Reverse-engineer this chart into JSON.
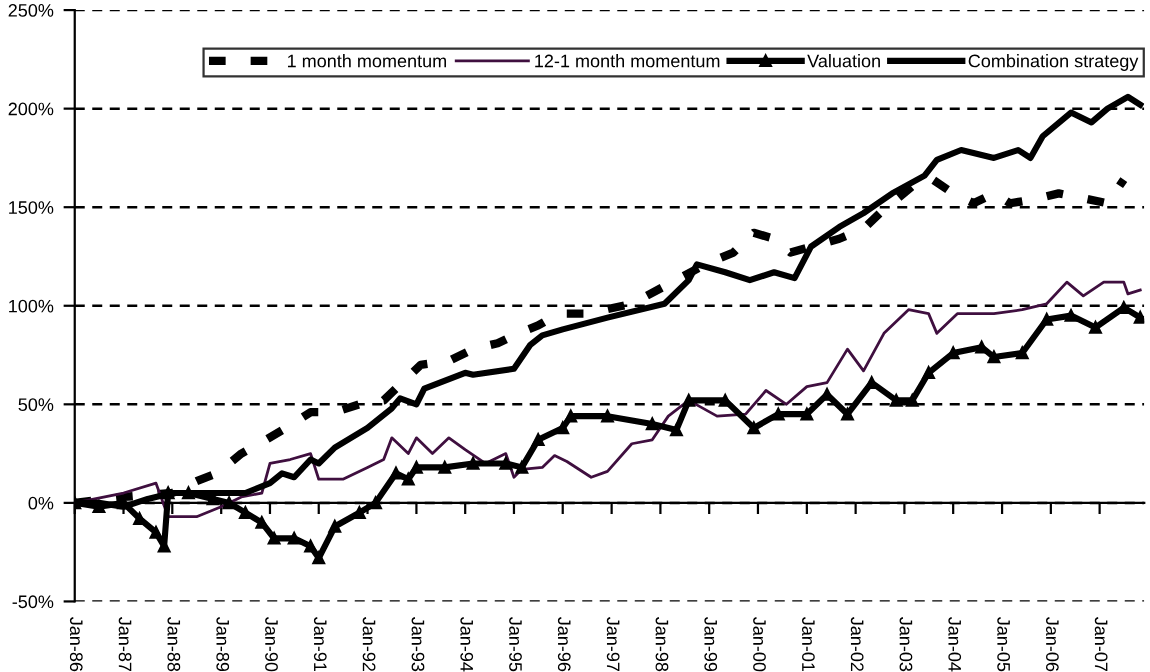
{
  "chart_data": {
    "type": "line",
    "ylim": [
      -50,
      250
    ],
    "yticks": [
      {
        "value": -50,
        "label": "-50%"
      },
      {
        "value": 0,
        "label": "0%"
      },
      {
        "value": 50,
        "label": "50%"
      },
      {
        "value": 100,
        "label": "100%"
      },
      {
        "value": 150,
        "label": "150%"
      },
      {
        "value": 200,
        "label": "200%"
      },
      {
        "value": 250,
        "label": "250%"
      }
    ],
    "xlim": [
      "1986-01",
      "2007-12"
    ],
    "xticks": [
      {
        "value": "1986-01",
        "label": "Jan-86"
      },
      {
        "value": "1987-01",
        "label": "Jan-87"
      },
      {
        "value": "1988-01",
        "label": "Jan-88"
      },
      {
        "value": "1989-01",
        "label": "Jan-89"
      },
      {
        "value": "1990-01",
        "label": "Jan-90"
      },
      {
        "value": "1991-01",
        "label": "Jan-91"
      },
      {
        "value": "1992-01",
        "label": "Jan-92"
      },
      {
        "value": "1993-01",
        "label": "Jan-93"
      },
      {
        "value": "1994-01",
        "label": "Jan-94"
      },
      {
        "value": "1995-01",
        "label": "Jan-95"
      },
      {
        "value": "1996-01",
        "label": "Jan-96"
      },
      {
        "value": "1997-01",
        "label": "Jan-97"
      },
      {
        "value": "1998-01",
        "label": "Jan-98"
      },
      {
        "value": "1999-01",
        "label": "Jan-99"
      },
      {
        "value": "2000-01",
        "label": "Jan-00"
      },
      {
        "value": "2001-01",
        "label": "Jan-01"
      },
      {
        "value": "2002-01",
        "label": "Jan-02"
      },
      {
        "value": "2003-01",
        "label": "Jan-03"
      },
      {
        "value": "2004-01",
        "label": "Jan-04"
      },
      {
        "value": "2005-01",
        "label": "Jan-05"
      },
      {
        "value": "2006-01",
        "label": "Jan-06"
      },
      {
        "value": "2007-01",
        "label": "Jan-07"
      }
    ],
    "grid": "y",
    "legend": "top",
    "series": [
      {
        "name": "1 month momentum",
        "color": "#000000",
        "line_style": "dashed",
        "x": [
          "1986-01",
          "1987-01",
          "1988-01",
          "1988-07",
          "1988-12",
          "1989-06",
          "1989-12",
          "1990-05",
          "1990-11",
          "1991-05",
          "1991-11",
          "1992-05",
          "1992-09",
          "1993-02",
          "1993-09",
          "1994-03",
          "1994-09",
          "1995-02",
          "1995-07",
          "1995-12",
          "1996-07",
          "1997-06",
          "1999-01",
          "1999-07",
          "1999-12",
          "2000-05",
          "2000-09",
          "2001-09",
          "2002-03",
          "2002-07",
          "2003-05",
          "2003-08",
          "2004-01",
          "2004-06",
          "2004-11",
          "2005-03",
          "2005-09",
          "2006-03",
          "2006-08",
          "2007-03",
          "2007-07"
        ],
        "values": [
          0,
          3,
          5,
          11,
          15,
          25,
          32,
          38,
          46,
          46,
          50,
          52,
          60,
          70,
          72,
          78,
          81,
          86,
          90,
          96,
          96,
          101,
          122,
          127,
          137,
          134,
          127,
          134,
          139,
          147,
          164,
          164,
          157,
          152,
          157,
          152,
          154,
          157,
          155,
          152,
          164
        ]
      },
      {
        "name": "12-1 month momentum",
        "color": "#3f0f3f",
        "line_style": "solid",
        "x": [
          "1986-01",
          "1987-01",
          "1987-09",
          "1987-12",
          "1988-07",
          "1989-01",
          "1989-06",
          "1989-11",
          "1990-01",
          "1990-06",
          "1990-11",
          "1991-01",
          "1991-07",
          "1992-01",
          "1992-05",
          "1992-07",
          "1992-11",
          "1993-01",
          "1993-05",
          "1993-09",
          "1994-01",
          "1994-06",
          "1994-11",
          "1995-01",
          "1995-03",
          "1995-08",
          "1995-11",
          "1996-02",
          "1996-08",
          "1996-12",
          "1997-06",
          "1997-11",
          "1998-03",
          "1998-08",
          "1999-03",
          "1999-10",
          "2000-03",
          "2000-08",
          "2001-01",
          "2001-06",
          "2001-11",
          "2002-03",
          "2002-08",
          "2003-02",
          "2003-07",
          "2003-09",
          "2004-02",
          "2004-11",
          "2005-06",
          "2005-12",
          "2006-05",
          "2006-09",
          "2007-02",
          "2007-07",
          "2007-08",
          "2007-11"
        ],
        "values": [
          0,
          5,
          10,
          -7,
          -7,
          -2,
          3,
          5,
          20,
          22,
          25,
          12,
          12,
          18,
          22,
          33,
          25,
          33,
          25,
          33,
          27,
          20,
          25,
          13,
          17,
          18,
          24,
          21,
          13,
          16,
          30,
          32,
          44,
          52,
          44,
          45,
          57,
          50,
          59,
          61,
          78,
          67,
          86,
          98,
          96,
          86,
          96,
          96,
          98,
          101,
          112,
          105,
          112,
          112,
          106,
          108
        ]
      },
      {
        "name": "Valuation",
        "color": "#000000",
        "line_style": "solid",
        "marker": "triangle",
        "x": [
          "1986-01",
          "1986-07",
          "1987-01",
          "1987-05",
          "1987-09",
          "1987-11",
          "1987-12",
          "1988-05",
          "1988-11",
          "1989-03",
          "1989-07",
          "1989-11",
          "1990-02",
          "1990-07",
          "1990-11",
          "1991-01",
          "1991-05",
          "1991-11",
          "1992-03",
          "1992-08",
          "1992-11",
          "1993-01",
          "1993-08",
          "1994-03",
          "1994-11",
          "1995-03",
          "1995-07",
          "1996-01",
          "1996-03",
          "1996-12",
          "1997-11",
          "1998-05",
          "1998-08",
          "1999-05",
          "1999-12",
          "2000-06",
          "2001-01",
          "2001-06",
          "2001-11",
          "2002-05",
          "2002-11",
          "2003-03",
          "2003-07",
          "2004-01",
          "2004-08",
          "2004-11",
          "2005-06",
          "2005-12",
          "2006-06",
          "2006-12",
          "2007-07",
          "2007-11"
        ],
        "values": [
          0,
          -2,
          0,
          -8,
          -15,
          -22,
          5,
          5,
          2,
          0,
          -5,
          -10,
          -18,
          -18,
          -22,
          -28,
          -12,
          -5,
          0,
          15,
          12,
          18,
          18,
          20,
          20,
          18,
          32,
          38,
          44,
          44,
          40,
          37,
          52,
          52,
          38,
          45,
          45,
          55,
          45,
          61,
          52,
          52,
          66,
          76,
          79,
          74,
          76,
          93,
          95,
          89,
          99,
          94
        ]
      },
      {
        "name": "Combination strategy",
        "color": "#000000",
        "line_style": "solid",
        "x": [
          "1986-01",
          "1986-07",
          "1987-01",
          "1987-07",
          "1988-01",
          "1989-01",
          "1989-07",
          "1990-01",
          "1990-04",
          "1990-07",
          "1990-11",
          "1991-01",
          "1991-05",
          "1992-01",
          "1992-07",
          "1992-09",
          "1993-01",
          "1993-03",
          "1994-01",
          "1994-03",
          "1995-01",
          "1995-05",
          "1995-08",
          "1996-01",
          "1996-12",
          "1998-02",
          "1998-08",
          "1998-10",
          "1999-05",
          "1999-11",
          "2000-05",
          "2000-10",
          "2001-02",
          "2001-09",
          "2002-03",
          "2002-10",
          "2003-06",
          "2003-09",
          "2004-03",
          "2004-11",
          "2005-05",
          "2005-08",
          "2005-11",
          "2006-06",
          "2006-11",
          "2007-03",
          "2007-08",
          "2007-11"
        ],
        "values": [
          0,
          0,
          -2,
          2,
          5,
          5,
          5,
          10,
          15,
          13,
          22,
          20,
          28,
          38,
          48,
          53,
          50,
          58,
          66,
          65,
          68,
          80,
          85,
          88,
          94,
          101,
          113,
          121,
          117,
          113,
          117,
          114,
          130,
          140,
          147,
          157,
          166,
          174,
          179,
          175,
          179,
          175,
          186,
          198,
          193,
          200,
          206,
          202
        ]
      }
    ]
  }
}
